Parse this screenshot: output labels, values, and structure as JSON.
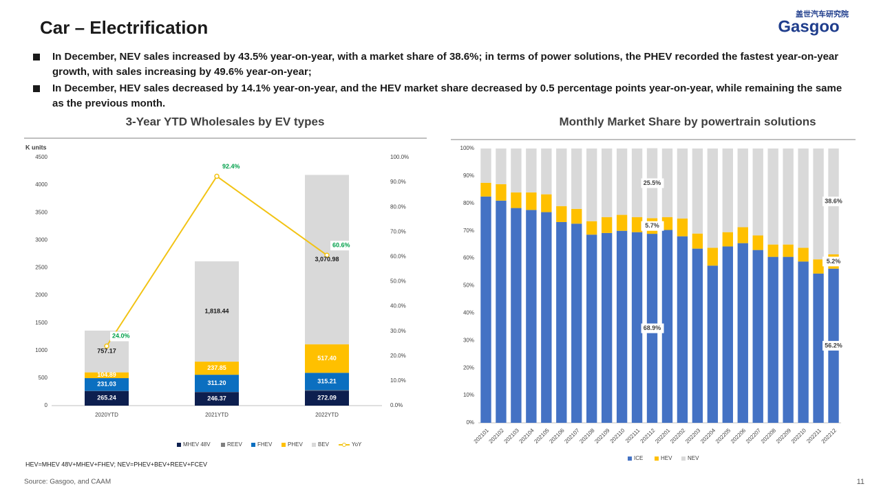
{
  "title": "Car – Electrification",
  "logo": {
    "name": "Gasgoo",
    "subtitle": "盖世汽车研究院"
  },
  "bullets": [
    "In December, NEV sales increased by 43.5% year-on-year, with a market share of 38.6%; in terms of power solutions, the PHEV recorded the fastest year-on-year growth, with sales increasing by 49.6% year-on-year;",
    "In December, HEV sales decreased by 14.1% year-on-year, and the HEV market share decreased by 0.5 percentage points year-on-year, while remaining the same as the previous month."
  ],
  "footnote": "HEV=MHEV 48V+MHEV+FHEV; NEV=PHEV+BEV+REEV+FCEV",
  "source": "Source: Gasgoo, and CAAM",
  "page_number": 11,
  "chart_data": [
    {
      "type": "bar",
      "stacked": true,
      "title": "3-Year YTD Wholesales by EV types",
      "y_label": "K units",
      "categories": [
        "2020YTD",
        "2021YTD",
        "2022YTD"
      ],
      "series": [
        {
          "name": "MHEV 48V",
          "color": "#0d1f4f",
          "values": [
            265.24,
            246.37,
            272.09
          ],
          "value_labels": [
            "265.24",
            "246.37",
            "272.09"
          ]
        },
        {
          "name": "REEV",
          "color": "#7f7f7f",
          "values": [
            2,
            2,
            8
          ]
        },
        {
          "name": "FHEV",
          "color": "#0b6fc0",
          "values": [
            231.03,
            311.2,
            315.21
          ],
          "value_labels": [
            "231.03",
            "311.20",
            "315.21"
          ]
        },
        {
          "name": "PHEV",
          "color": "#ffc000",
          "values": [
            104.89,
            237.85,
            517.4
          ],
          "value_labels": [
            "104.89",
            "237.85",
            "517.40"
          ]
        },
        {
          "name": "BEV",
          "color": "#d9d9d9",
          "values": [
            757.17,
            1818.44,
            3070.98
          ],
          "value_labels": [
            "757.17",
            "1,818.44",
            "3,070.98"
          ]
        },
        {
          "name": "YoY",
          "color": "#f2c314",
          "type": "line",
          "axis": "y2",
          "label_color": "#00a04a",
          "values": [
            24.0,
            92.4,
            60.6
          ],
          "value_labels": [
            "24.0%",
            "92.4%",
            "60.6%"
          ]
        }
      ],
      "ylim": [
        0,
        4500
      ],
      "yticks": [
        0,
        500,
        1000,
        1500,
        2000,
        2500,
        3000,
        3500,
        4000,
        4500
      ],
      "y2lim": [
        0,
        100
      ],
      "y2ticks": [
        {
          "value": 0,
          "label": "0.0%"
        },
        {
          "value": 10,
          "label": "10.0%"
        },
        {
          "value": 20,
          "label": "20.0%"
        },
        {
          "value": 30,
          "label": "30.0%"
        },
        {
          "value": 40,
          "label": "40.0%"
        },
        {
          "value": 50,
          "label": "50.0%"
        },
        {
          "value": 60,
          "label": "60.0%"
        },
        {
          "value": 70,
          "label": "70.0%"
        },
        {
          "value": 80,
          "label": "80.0%"
        },
        {
          "value": 90,
          "label": "90.0%"
        },
        {
          "value": 100,
          "label": "100.0%"
        }
      ],
      "grid": false,
      "legend": "bottom"
    },
    {
      "type": "bar",
      "stacked": true,
      "title": "Monthly Market Share by powertrain solutions",
      "label_box": true,
      "categories": [
        "202101",
        "202102",
        "202103",
        "202104",
        "202105",
        "202106",
        "202107",
        "202108",
        "202109",
        "202110",
        "202111",
        "202112",
        "202201",
        "202202",
        "202203",
        "202204",
        "202205",
        "202206",
        "202207",
        "202208",
        "202209",
        "202210",
        "202211",
        "202212"
      ],
      "series": [
        {
          "name": "ICE",
          "color": "#4472c4",
          "values": [
            82.5,
            81,
            78.3,
            77.6,
            76.8,
            73.2,
            72.6,
            68.6,
            69.2,
            70,
            69.5,
            68.9,
            70.3,
            68,
            63.5,
            57.3,
            64.3,
            65.5,
            63,
            60.5,
            60.5,
            58.8,
            54.4,
            56.2
          ],
          "value_labels": [
            null,
            null,
            null,
            null,
            null,
            null,
            null,
            null,
            null,
            null,
            null,
            "68.9%",
            null,
            null,
            null,
            null,
            null,
            null,
            null,
            null,
            null,
            null,
            null,
            "56.2%"
          ]
        },
        {
          "name": "HEV",
          "color": "#ffc000",
          "values": [
            5,
            6,
            5.7,
            6.4,
            6.5,
            5.8,
            5.4,
            4.9,
            5.8,
            5.8,
            5.5,
            5.7,
            4.7,
            6.5,
            5.5,
            6.5,
            5.2,
            5.8,
            5.3,
            4.5,
            4.5,
            5,
            5.2,
            5.2
          ],
          "value_labels": [
            null,
            null,
            null,
            null,
            null,
            null,
            null,
            null,
            null,
            null,
            null,
            "5.7%",
            null,
            null,
            null,
            null,
            null,
            null,
            null,
            null,
            null,
            null,
            null,
            "5.2%"
          ]
        },
        {
          "name": "NEV",
          "color": "#d9d9d9",
          "values": [
            12.5,
            13,
            16,
            16,
            16.7,
            21,
            22,
            26.5,
            25,
            24.2,
            25,
            25.5,
            25,
            25.5,
            31,
            36.2,
            30.5,
            28.7,
            31.7,
            35,
            35,
            36.2,
            40.4,
            38.6
          ],
          "value_labels": [
            null,
            null,
            null,
            null,
            null,
            null,
            null,
            null,
            null,
            null,
            null,
            "25.5%",
            null,
            null,
            null,
            null,
            null,
            null,
            null,
            null,
            null,
            null,
            null,
            "38.6%"
          ]
        }
      ],
      "ylim": [
        0,
        100
      ],
      "yticks": [
        {
          "value": 0,
          "label": "0%"
        },
        {
          "value": 10,
          "label": "10%"
        },
        {
          "value": 20,
          "label": "20%"
        },
        {
          "value": 30,
          "label": "30%"
        },
        {
          "value": 40,
          "label": "40%"
        },
        {
          "value": 50,
          "label": "50%"
        },
        {
          "value": 60,
          "label": "60%"
        },
        {
          "value": 70,
          "label": "70%"
        },
        {
          "value": 80,
          "label": "80%"
        },
        {
          "value": 90,
          "label": "90%"
        },
        {
          "value": 100,
          "label": "100%"
        }
      ],
      "grid": false,
      "legend": "bottom"
    }
  ]
}
